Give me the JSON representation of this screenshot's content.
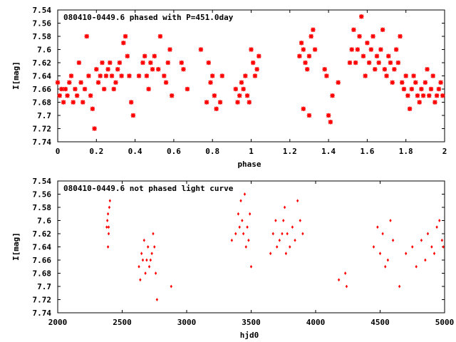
{
  "chart_data": [
    {
      "type": "scatter",
      "title": "080410-0449.6 phased with P=451.0day",
      "xlabel": "phase",
      "ylabel": "I[mag]",
      "xlim": [
        0,
        2
      ],
      "ylim": [
        7.54,
        7.74
      ],
      "y_inverted": true,
      "x_ticks": [
        0,
        0.2,
        0.4,
        0.6,
        0.8,
        1,
        1.2,
        1.4,
        1.6,
        1.8,
        2
      ],
      "x_tick_labels": [
        "0",
        "0.2",
        "0.4",
        "0.6",
        "0.8",
        "1",
        "1.2",
        "1.4",
        "1.6",
        "1.8",
        "2"
      ],
      "y_ticks": [
        7.54,
        7.56,
        7.58,
        7.6,
        7.62,
        7.64,
        7.66,
        7.68,
        7.7,
        7.72,
        7.74
      ],
      "y_tick_labels": [
        "7.54",
        "7.56",
        "7.58",
        "7.6",
        "7.62",
        "7.64",
        "7.66",
        "7.68",
        "7.7",
        "7.72",
        "7.74"
      ],
      "marker": "star",
      "color": "#ff0000",
      "points": [
        [
          0.0,
          7.65
        ],
        [
          0.01,
          7.67
        ],
        [
          0.02,
          7.66
        ],
        [
          0.03,
          7.68
        ],
        [
          0.04,
          7.66
        ],
        [
          0.05,
          7.67
        ],
        [
          0.06,
          7.65
        ],
        [
          0.07,
          7.64
        ],
        [
          0.08,
          7.68
        ],
        [
          0.09,
          7.66
        ],
        [
          0.1,
          7.67
        ],
        [
          0.11,
          7.62
        ],
        [
          0.12,
          7.65
        ],
        [
          0.13,
          7.68
        ],
        [
          0.14,
          7.66
        ],
        [
          0.15,
          7.58
        ],
        [
          0.16,
          7.64
        ],
        [
          0.17,
          7.67
        ],
        [
          0.18,
          7.69
        ],
        [
          0.19,
          7.72
        ],
        [
          0.2,
          7.63
        ],
        [
          0.21,
          7.65
        ],
        [
          0.22,
          7.64
        ],
        [
          0.23,
          7.62
        ],
        [
          0.24,
          7.66
        ],
        [
          0.25,
          7.64
        ],
        [
          0.26,
          7.63
        ],
        [
          0.27,
          7.62
        ],
        [
          0.28,
          7.64
        ],
        [
          0.29,
          7.66
        ],
        [
          0.3,
          7.65
        ],
        [
          0.31,
          7.63
        ],
        [
          0.32,
          7.62
        ],
        [
          0.33,
          7.64
        ],
        [
          0.34,
          7.59
        ],
        [
          0.35,
          7.58
        ],
        [
          0.36,
          7.61
        ],
        [
          0.37,
          7.64
        ],
        [
          0.38,
          7.68
        ],
        [
          0.39,
          7.7
        ],
        [
          0.42,
          7.64
        ],
        [
          0.44,
          7.62
        ],
        [
          0.45,
          7.61
        ],
        [
          0.46,
          7.64
        ],
        [
          0.47,
          7.66
        ],
        [
          0.48,
          7.62
        ],
        [
          0.49,
          7.63
        ],
        [
          0.5,
          7.61
        ],
        [
          0.52,
          7.63
        ],
        [
          0.53,
          7.58
        ],
        [
          0.55,
          7.64
        ],
        [
          0.56,
          7.65
        ],
        [
          0.57,
          7.62
        ],
        [
          0.58,
          7.6
        ],
        [
          0.59,
          7.67
        ],
        [
          0.64,
          7.62
        ],
        [
          0.65,
          7.63
        ],
        [
          0.67,
          7.66
        ],
        [
          0.74,
          7.6
        ],
        [
          0.77,
          7.68
        ],
        [
          0.78,
          7.62
        ],
        [
          0.79,
          7.65
        ],
        [
          0.8,
          7.64
        ],
        [
          0.81,
          7.67
        ],
        [
          0.82,
          7.69
        ],
        [
          0.84,
          7.68
        ],
        [
          0.85,
          7.64
        ],
        [
          0.92,
          7.66
        ],
        [
          0.93,
          7.68
        ],
        [
          0.94,
          7.67
        ],
        [
          0.95,
          7.65
        ],
        [
          0.96,
          7.66
        ],
        [
          0.97,
          7.64
        ],
        [
          0.98,
          7.67
        ],
        [
          0.99,
          7.68
        ],
        [
          1.0,
          7.6
        ],
        [
          1.01,
          7.62
        ],
        [
          1.02,
          7.64
        ],
        [
          1.03,
          7.63
        ],
        [
          1.04,
          7.61
        ],
        [
          1.25,
          7.61
        ],
        [
          1.26,
          7.59
        ],
        [
          1.27,
          7.6
        ],
        [
          1.28,
          7.62
        ],
        [
          1.29,
          7.63
        ],
        [
          1.3,
          7.61
        ],
        [
          1.31,
          7.58
        ],
        [
          1.32,
          7.57
        ],
        [
          1.33,
          7.6
        ],
        [
          1.27,
          7.69
        ],
        [
          1.3,
          7.7
        ],
        [
          1.38,
          7.63
        ],
        [
          1.39,
          7.64
        ],
        [
          1.4,
          7.7
        ],
        [
          1.41,
          7.71
        ],
        [
          1.42,
          7.67
        ],
        [
          1.45,
          7.65
        ],
        [
          1.51,
          7.62
        ],
        [
          1.52,
          7.6
        ],
        [
          1.53,
          7.57
        ],
        [
          1.54,
          7.62
        ],
        [
          1.55,
          7.6
        ],
        [
          1.56,
          7.58
        ],
        [
          1.57,
          7.55
        ],
        [
          1.58,
          7.61
        ],
        [
          1.59,
          7.64
        ],
        [
          1.6,
          7.59
        ],
        [
          1.61,
          7.62
        ],
        [
          1.62,
          7.6
        ],
        [
          1.63,
          7.58
        ],
        [
          1.64,
          7.63
        ],
        [
          1.65,
          7.61
        ],
        [
          1.66,
          7.62
        ],
        [
          1.67,
          7.6
        ],
        [
          1.68,
          7.57
        ],
        [
          1.69,
          7.63
        ],
        [
          1.7,
          7.64
        ],
        [
          1.71,
          7.61
        ],
        [
          1.72,
          7.62
        ],
        [
          1.73,
          7.65
        ],
        [
          1.74,
          7.63
        ],
        [
          1.75,
          7.6
        ],
        [
          1.76,
          7.62
        ],
        [
          1.77,
          7.58
        ],
        [
          1.78,
          7.65
        ],
        [
          1.79,
          7.66
        ],
        [
          1.8,
          7.64
        ],
        [
          1.81,
          7.67
        ],
        [
          1.82,
          7.69
        ],
        [
          1.83,
          7.66
        ],
        [
          1.84,
          7.64
        ],
        [
          1.85,
          7.65
        ],
        [
          1.86,
          7.67
        ],
        [
          1.87,
          7.68
        ],
        [
          1.88,
          7.66
        ],
        [
          1.89,
          7.67
        ],
        [
          1.9,
          7.65
        ],
        [
          1.91,
          7.63
        ],
        [
          1.92,
          7.67
        ],
        [
          1.93,
          7.66
        ],
        [
          1.94,
          7.64
        ],
        [
          1.95,
          7.68
        ],
        [
          1.96,
          7.67
        ],
        [
          1.97,
          7.66
        ],
        [
          1.98,
          7.65
        ],
        [
          1.99,
          7.67
        ]
      ]
    },
    {
      "type": "scatter",
      "title": "080410-0449.6 not phased light curve",
      "xlabel": "hjd0",
      "ylabel": "I[mag]",
      "xlim": [
        2000,
        5000
      ],
      "ylim": [
        7.54,
        7.74
      ],
      "y_inverted": true,
      "x_ticks": [
        2000,
        2500,
        3000,
        3500,
        4000,
        4500,
        5000
      ],
      "x_tick_labels": [
        "2000",
        "2500",
        "3000",
        "3500",
        "4000",
        "4500",
        "5000"
      ],
      "y_ticks": [
        7.54,
        7.56,
        7.58,
        7.6,
        7.62,
        7.64,
        7.66,
        7.68,
        7.7,
        7.72,
        7.74
      ],
      "y_tick_labels": [
        "7.54",
        "7.56",
        "7.58",
        "7.6",
        "7.62",
        "7.64",
        "7.66",
        "7.68",
        "7.7",
        "7.72",
        "7.74"
      ],
      "marker": "diamond",
      "color": "#ff0000",
      "points": [
        [
          2380,
          7.61
        ],
        [
          2385,
          7.6
        ],
        [
          2390,
          7.59
        ],
        [
          2395,
          7.62
        ],
        [
          2400,
          7.58
        ],
        [
          2405,
          7.57
        ],
        [
          2390,
          7.64
        ],
        [
          2395,
          7.61
        ],
        [
          2630,
          7.67
        ],
        [
          2640,
          7.69
        ],
        [
          2650,
          7.65
        ],
        [
          2660,
          7.66
        ],
        [
          2670,
          7.63
        ],
        [
          2680,
          7.68
        ],
        [
          2690,
          7.66
        ],
        [
          2700,
          7.64
        ],
        [
          2710,
          7.67
        ],
        [
          2720,
          7.66
        ],
        [
          2730,
          7.65
        ],
        [
          2740,
          7.62
        ],
        [
          2750,
          7.64
        ],
        [
          2760,
          7.68
        ],
        [
          2770,
          7.72
        ],
        [
          2880,
          7.7
        ],
        [
          3350,
          7.63
        ],
        [
          3380,
          7.62
        ],
        [
          3400,
          7.59
        ],
        [
          3410,
          7.61
        ],
        [
          3420,
          7.57
        ],
        [
          3430,
          7.6
        ],
        [
          3440,
          7.62
        ],
        [
          3450,
          7.56
        ],
        [
          3460,
          7.64
        ],
        [
          3470,
          7.61
        ],
        [
          3480,
          7.63
        ],
        [
          3490,
          7.59
        ],
        [
          3500,
          7.67
        ],
        [
          3650,
          7.65
        ],
        [
          3670,
          7.62
        ],
        [
          3690,
          7.6
        ],
        [
          3700,
          7.64
        ],
        [
          3720,
          7.63
        ],
        [
          3740,
          7.62
        ],
        [
          3750,
          7.6
        ],
        [
          3760,
          7.58
        ],
        [
          3770,
          7.65
        ],
        [
          3780,
          7.62
        ],
        [
          3800,
          7.64
        ],
        [
          3820,
          7.61
        ],
        [
          3840,
          7.63
        ],
        [
          3860,
          7.57
        ],
        [
          3880,
          7.6
        ],
        [
          3900,
          7.62
        ],
        [
          4180,
          7.69
        ],
        [
          4230,
          7.68
        ],
        [
          4240,
          7.7
        ],
        [
          4450,
          7.64
        ],
        [
          4480,
          7.61
        ],
        [
          4500,
          7.65
        ],
        [
          4520,
          7.62
        ],
        [
          4540,
          7.67
        ],
        [
          4560,
          7.66
        ],
        [
          4580,
          7.6
        ],
        [
          4600,
          7.63
        ],
        [
          4650,
          7.7
        ],
        [
          4700,
          7.65
        ],
        [
          4750,
          7.64
        ],
        [
          4780,
          7.67
        ],
        [
          4820,
          7.63
        ],
        [
          4850,
          7.66
        ],
        [
          4870,
          7.62
        ],
        [
          4900,
          7.64
        ],
        [
          4920,
          7.65
        ],
        [
          4940,
          7.61
        ],
        [
          4960,
          7.6
        ],
        [
          4980,
          7.63
        ],
        [
          4990,
          7.64
        ]
      ]
    }
  ]
}
